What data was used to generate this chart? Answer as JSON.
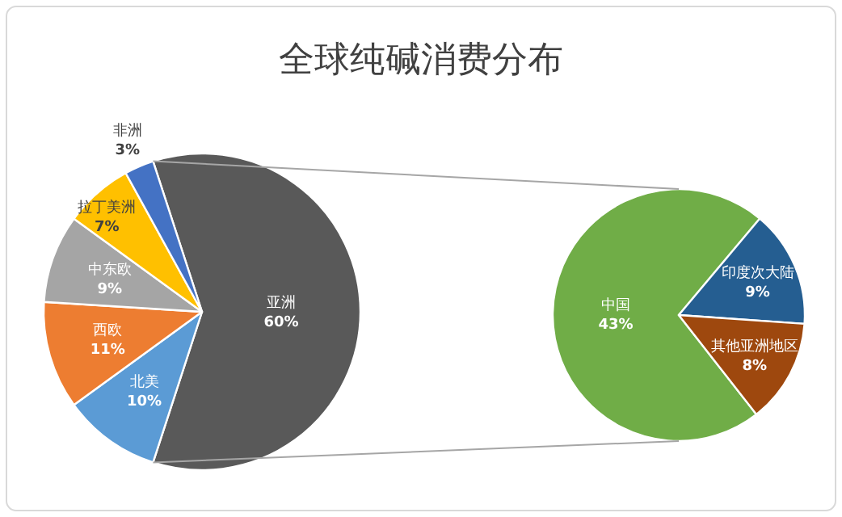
{
  "chart_data": [
    {
      "type": "pie",
      "title": "全球纯碱消费分布",
      "categories": [
        "亚洲",
        "北美",
        "西欧",
        "中东欧",
        "拉丁美洲",
        "非洲"
      ],
      "values": [
        60,
        10,
        11,
        9,
        7,
        3
      ],
      "value_labels": [
        "60%",
        "10%",
        "11%",
        "9%",
        "7%",
        "3%"
      ],
      "colors": [
        "#595959",
        "#5b9bd5",
        "#ed7d31",
        "#a5a5a5",
        "#ffc000",
        "#4472c4"
      ]
    },
    {
      "type": "pie",
      "categories": [
        "中国",
        "印度次大陆",
        "其他亚洲地区"
      ],
      "values": [
        43,
        9,
        8
      ],
      "value_labels": [
        "43%",
        "9%",
        "8%"
      ],
      "colors": [
        "#70ad47",
        "#255e91",
        "#9e480e"
      ]
    }
  ]
}
